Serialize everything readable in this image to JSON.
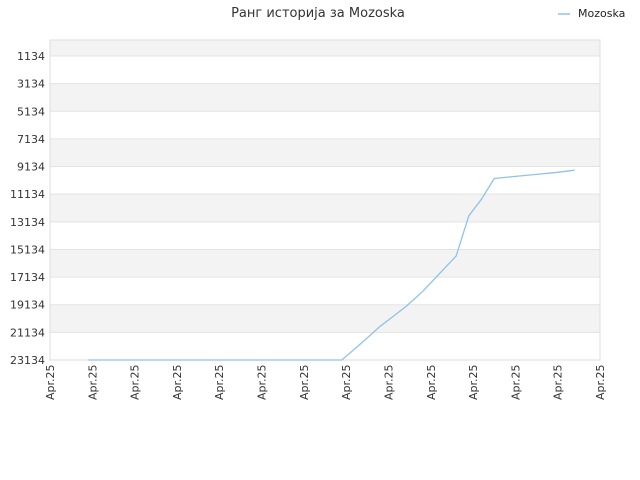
{
  "chart_data": {
    "type": "line",
    "title": "Ранг историја за Mozoska",
    "xlabel": "",
    "ylabel": "",
    "y_reversed": true,
    "grid": true,
    "legend_position": "top-right",
    "colors": {
      "series": "#90c2ea",
      "band": "#f3f3f3",
      "grid": "#e3e3e3",
      "frame": "#dddddd"
    },
    "x_tick_labels": [
      "Apr.25",
      "Apr.25",
      "Apr.25",
      "Apr.25",
      "Apr.25",
      "Apr.25",
      "Apr.25",
      "Apr.25",
      "Apr.25",
      "Apr.25",
      "Apr.25",
      "Apr.25",
      "Apr.25",
      "Apr.25"
    ],
    "y_ticks": [
      1134,
      3134,
      5134,
      7134,
      9134,
      11134,
      13134,
      15134,
      17134,
      19134,
      21134,
      23134
    ],
    "xlim": [
      0,
      13
    ],
    "ylim": [
      23134,
      0
    ],
    "series": [
      {
        "name": "Mozoska",
        "x": [
          0.9,
          1.9,
          2.9,
          3.9,
          4.9,
          5.9,
          6.4,
          6.9,
          7.4,
          7.8,
          8.4,
          8.8,
          9.2,
          9.6,
          9.9,
          10.2,
          10.5,
          11.0,
          11.5,
          12.0,
          12.4
        ],
        "y": [
          23134,
          23134,
          23134,
          23134,
          23134,
          23134,
          23134,
          23134,
          21800,
          20700,
          19300,
          18200,
          16900,
          15600,
          12700,
          11500,
          10000,
          9850,
          9700,
          9550,
          9400
        ]
      }
    ]
  }
}
